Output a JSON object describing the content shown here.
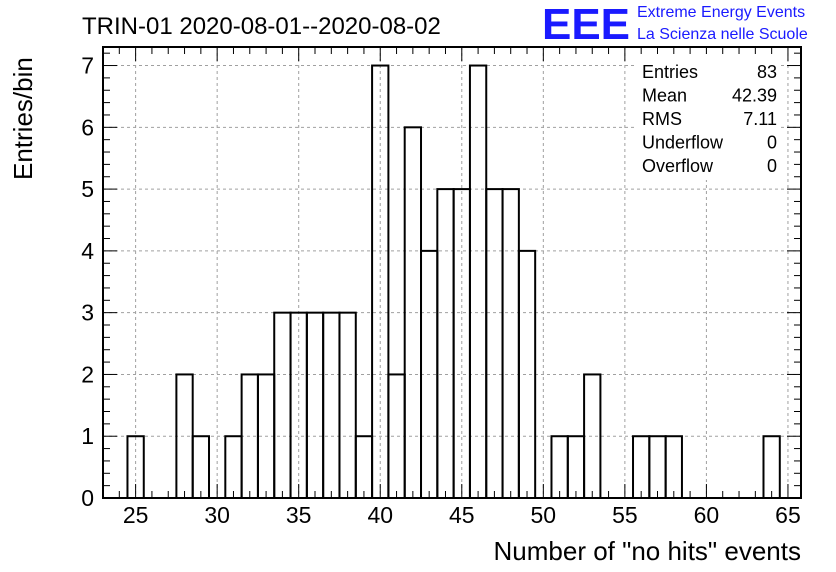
{
  "chart_data": {
    "type": "bar",
    "title": "TRIN-01 2020-08-01--2020-08-02",
    "xlabel": "Number of \"no hits\" events",
    "ylabel": "Entries/bin",
    "xlim": [
      23,
      65.8
    ],
    "ylim": [
      0,
      7.3
    ],
    "grid": true,
    "x_ticks": [
      "25",
      "30",
      "35",
      "40",
      "45",
      "50",
      "55",
      "60",
      "65"
    ],
    "y_ticks": [
      "0",
      "1",
      "2",
      "3",
      "4",
      "5",
      "6",
      "7"
    ],
    "bins": [
      {
        "x": 25,
        "value": 1
      },
      {
        "x": 28,
        "value": 2
      },
      {
        "x": 29,
        "value": 1
      },
      {
        "x": 31,
        "value": 1
      },
      {
        "x": 32,
        "value": 2
      },
      {
        "x": 33,
        "value": 2
      },
      {
        "x": 34,
        "value": 3
      },
      {
        "x": 35,
        "value": 3
      },
      {
        "x": 36,
        "value": 3
      },
      {
        "x": 37,
        "value": 3
      },
      {
        "x": 38,
        "value": 3
      },
      {
        "x": 39,
        "value": 1
      },
      {
        "x": 40,
        "value": 7
      },
      {
        "x": 41,
        "value": 2
      },
      {
        "x": 42,
        "value": 6
      },
      {
        "x": 43,
        "value": 4
      },
      {
        "x": 44,
        "value": 5
      },
      {
        "x": 45,
        "value": 5
      },
      {
        "x": 46,
        "value": 7
      },
      {
        "x": 47,
        "value": 5
      },
      {
        "x": 48,
        "value": 5
      },
      {
        "x": 49,
        "value": 4
      },
      {
        "x": 51,
        "value": 1
      },
      {
        "x": 52,
        "value": 1
      },
      {
        "x": 53,
        "value": 2
      },
      {
        "x": 56,
        "value": 1
      },
      {
        "x": 57,
        "value": 1
      },
      {
        "x": 58,
        "value": 1
      },
      {
        "x": 64,
        "value": 1
      }
    ],
    "stats": [
      {
        "label": "Entries",
        "value": "83"
      },
      {
        "label": "Mean",
        "value": "42.39"
      },
      {
        "label": "RMS",
        "value": "7.11"
      },
      {
        "label": "Underflow",
        "value": "0"
      },
      {
        "label": "Overflow",
        "value": "0"
      }
    ]
  },
  "logo": {
    "mark": "EEE",
    "line1": "Extreme Energy Events",
    "line2": "La Scienza nelle Scuole",
    "color": "#1a1aff"
  }
}
